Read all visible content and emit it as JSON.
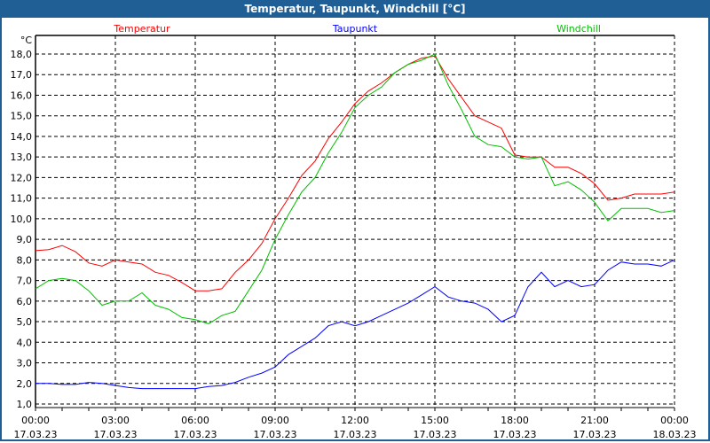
{
  "title": "Temperatur, Taupunkt, Windchill [°C]",
  "chart_data": {
    "type": "line",
    "title": "Temperatur, Taupunkt, Windchill [°C]",
    "ylabel": "°C",
    "ylim": [
      1.0,
      18.0
    ],
    "yticks": [
      "1,0",
      "2,0",
      "3,0",
      "4,0",
      "5,0",
      "6,0",
      "7,0",
      "8,0",
      "9,0",
      "10,0",
      "11,0",
      "12,0",
      "13,0",
      "14,0",
      "15,0",
      "16,0",
      "17,0",
      "18,0"
    ],
    "xlim_hours": [
      0,
      24
    ],
    "xticks": [
      {
        "time": "00:00",
        "date": "17.03.23"
      },
      {
        "time": "03:00",
        "date": "17.03.23"
      },
      {
        "time": "06:00",
        "date": "17.03.23"
      },
      {
        "time": "09:00",
        "date": "17.03.23"
      },
      {
        "time": "12:00",
        "date": "17.03.23"
      },
      {
        "time": "15:00",
        "date": "17.03.23"
      },
      {
        "time": "18:00",
        "date": "17.03.23"
      },
      {
        "time": "21:00",
        "date": "17.03.23"
      },
      {
        "time": "00:00",
        "date": "18.03.23"
      }
    ],
    "grid": true,
    "legend_placement": "top",
    "x_hours": [
      0,
      0.5,
      1,
      1.5,
      2,
      2.5,
      3,
      3.5,
      4,
      4.5,
      5,
      5.5,
      6,
      6.5,
      7,
      7.5,
      8,
      8.5,
      9,
      9.5,
      10,
      10.5,
      11,
      11.5,
      12,
      12.5,
      13,
      13.5,
      14,
      14.5,
      15,
      15.5,
      16,
      16.5,
      17,
      17.5,
      18,
      18.5,
      19,
      19.5,
      20,
      20.5,
      21,
      21.5,
      22,
      22.5,
      23,
      23.5,
      24
    ],
    "series": [
      {
        "name": "Temperatur",
        "color": "#ff0000",
        "values": [
          8.45,
          8.5,
          8.7,
          8.4,
          7.85,
          7.7,
          8.0,
          7.9,
          7.8,
          7.4,
          7.25,
          6.9,
          6.5,
          6.5,
          6.6,
          7.4,
          8.0,
          8.8,
          10.0,
          11.0,
          12.1,
          12.8,
          13.9,
          14.7,
          15.6,
          16.2,
          16.6,
          17.1,
          17.5,
          17.8,
          17.9,
          16.8,
          15.9,
          15.0,
          14.7,
          14.4,
          13.1,
          13.0,
          13.0,
          12.5,
          12.5,
          12.2,
          11.7,
          10.9,
          11.0,
          11.2,
          11.2,
          11.2,
          11.3
        ]
      },
      {
        "name": "Taupunkt",
        "color": "#0000ff",
        "values": [
          2.0,
          2.0,
          1.95,
          1.95,
          2.05,
          2.0,
          1.9,
          1.8,
          1.75,
          1.75,
          1.75,
          1.75,
          1.75,
          1.85,
          1.9,
          2.05,
          2.3,
          2.5,
          2.8,
          3.4,
          3.8,
          4.2,
          4.8,
          5.0,
          4.8,
          5.0,
          5.3,
          5.6,
          5.9,
          6.3,
          6.7,
          6.2,
          6.0,
          5.9,
          5.6,
          5.0,
          5.3,
          6.7,
          7.4,
          6.7,
          7.0,
          6.7,
          6.8,
          7.5,
          7.9,
          7.8,
          7.8,
          7.7,
          8.0
        ]
      },
      {
        "name": "Windchill",
        "color": "#00c000",
        "values": [
          6.6,
          7.0,
          7.1,
          7.0,
          6.5,
          5.8,
          6.0,
          6.0,
          6.4,
          5.8,
          5.6,
          5.2,
          5.1,
          4.9,
          5.3,
          5.5,
          6.5,
          7.5,
          9.0,
          10.2,
          11.3,
          12.0,
          13.2,
          14.2,
          15.4,
          16.0,
          16.4,
          17.1,
          17.5,
          17.7,
          18.0,
          16.5,
          15.3,
          14.0,
          13.6,
          13.5,
          13.0,
          12.9,
          13.0,
          11.6,
          11.8,
          11.4,
          10.8,
          9.9,
          10.5,
          10.5,
          10.5,
          10.3,
          10.4
        ]
      }
    ]
  }
}
